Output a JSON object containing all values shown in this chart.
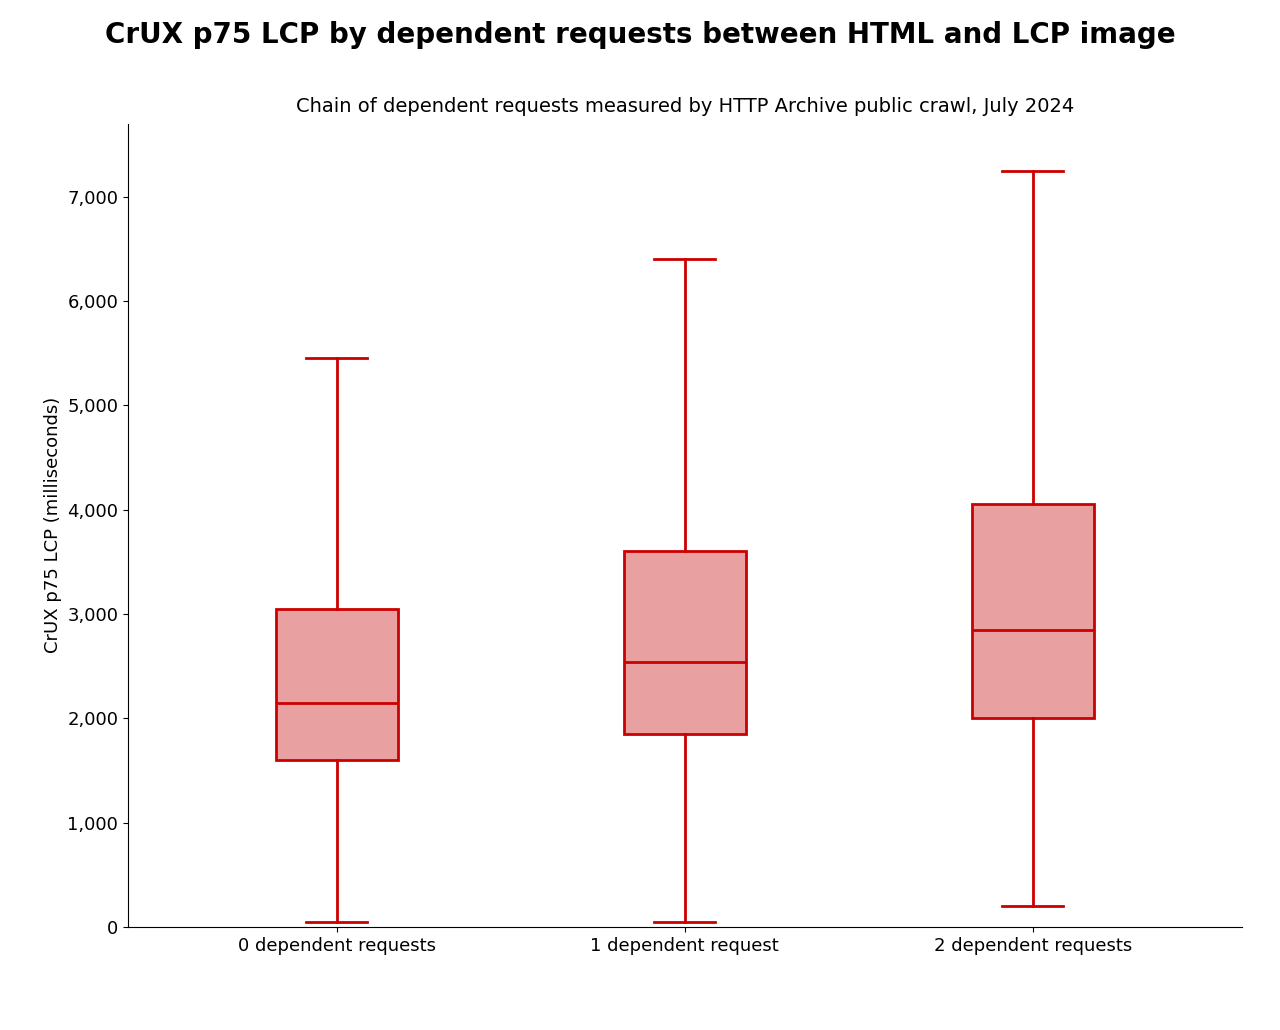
{
  "title": "CrUX p75 LCP by dependent requests between HTML and LCP image",
  "subtitle": "Chain of dependent requests measured by HTTP Archive public crawl, July 2024",
  "ylabel": "CrUX p75 LCP (milliseconds)",
  "categories": [
    "0 dependent requests",
    "1 dependent request",
    "2 dependent requests"
  ],
  "box_data": [
    {
      "whislo": 50,
      "q1": 1600,
      "med": 2150,
      "q3": 3050,
      "whishi": 5450
    },
    {
      "whislo": 50,
      "q1": 1850,
      "med": 2540,
      "q3": 3600,
      "whishi": 6400
    },
    {
      "whislo": 200,
      "q1": 2000,
      "med": 2850,
      "q3": 4050,
      "whishi": 7250
    }
  ],
  "box_color": "#e8a0a0",
  "box_edge_color": "#cc0000",
  "median_color": "#cc0000",
  "whisker_color": "#cc0000",
  "cap_color": "#cc0000",
  "ylim": [
    0,
    7700
  ],
  "yticks": [
    0,
    1000,
    2000,
    3000,
    4000,
    5000,
    6000,
    7000
  ],
  "ytick_labels": [
    "0",
    "1,000",
    "2,000",
    "3,000",
    "4,000",
    "5,000",
    "6,000",
    "7,000"
  ],
  "title_fontsize": 20,
  "subtitle_fontsize": 14,
  "ylabel_fontsize": 13,
  "xtick_fontsize": 13,
  "ytick_fontsize": 13,
  "box_width": 0.35,
  "linewidth": 2.0
}
